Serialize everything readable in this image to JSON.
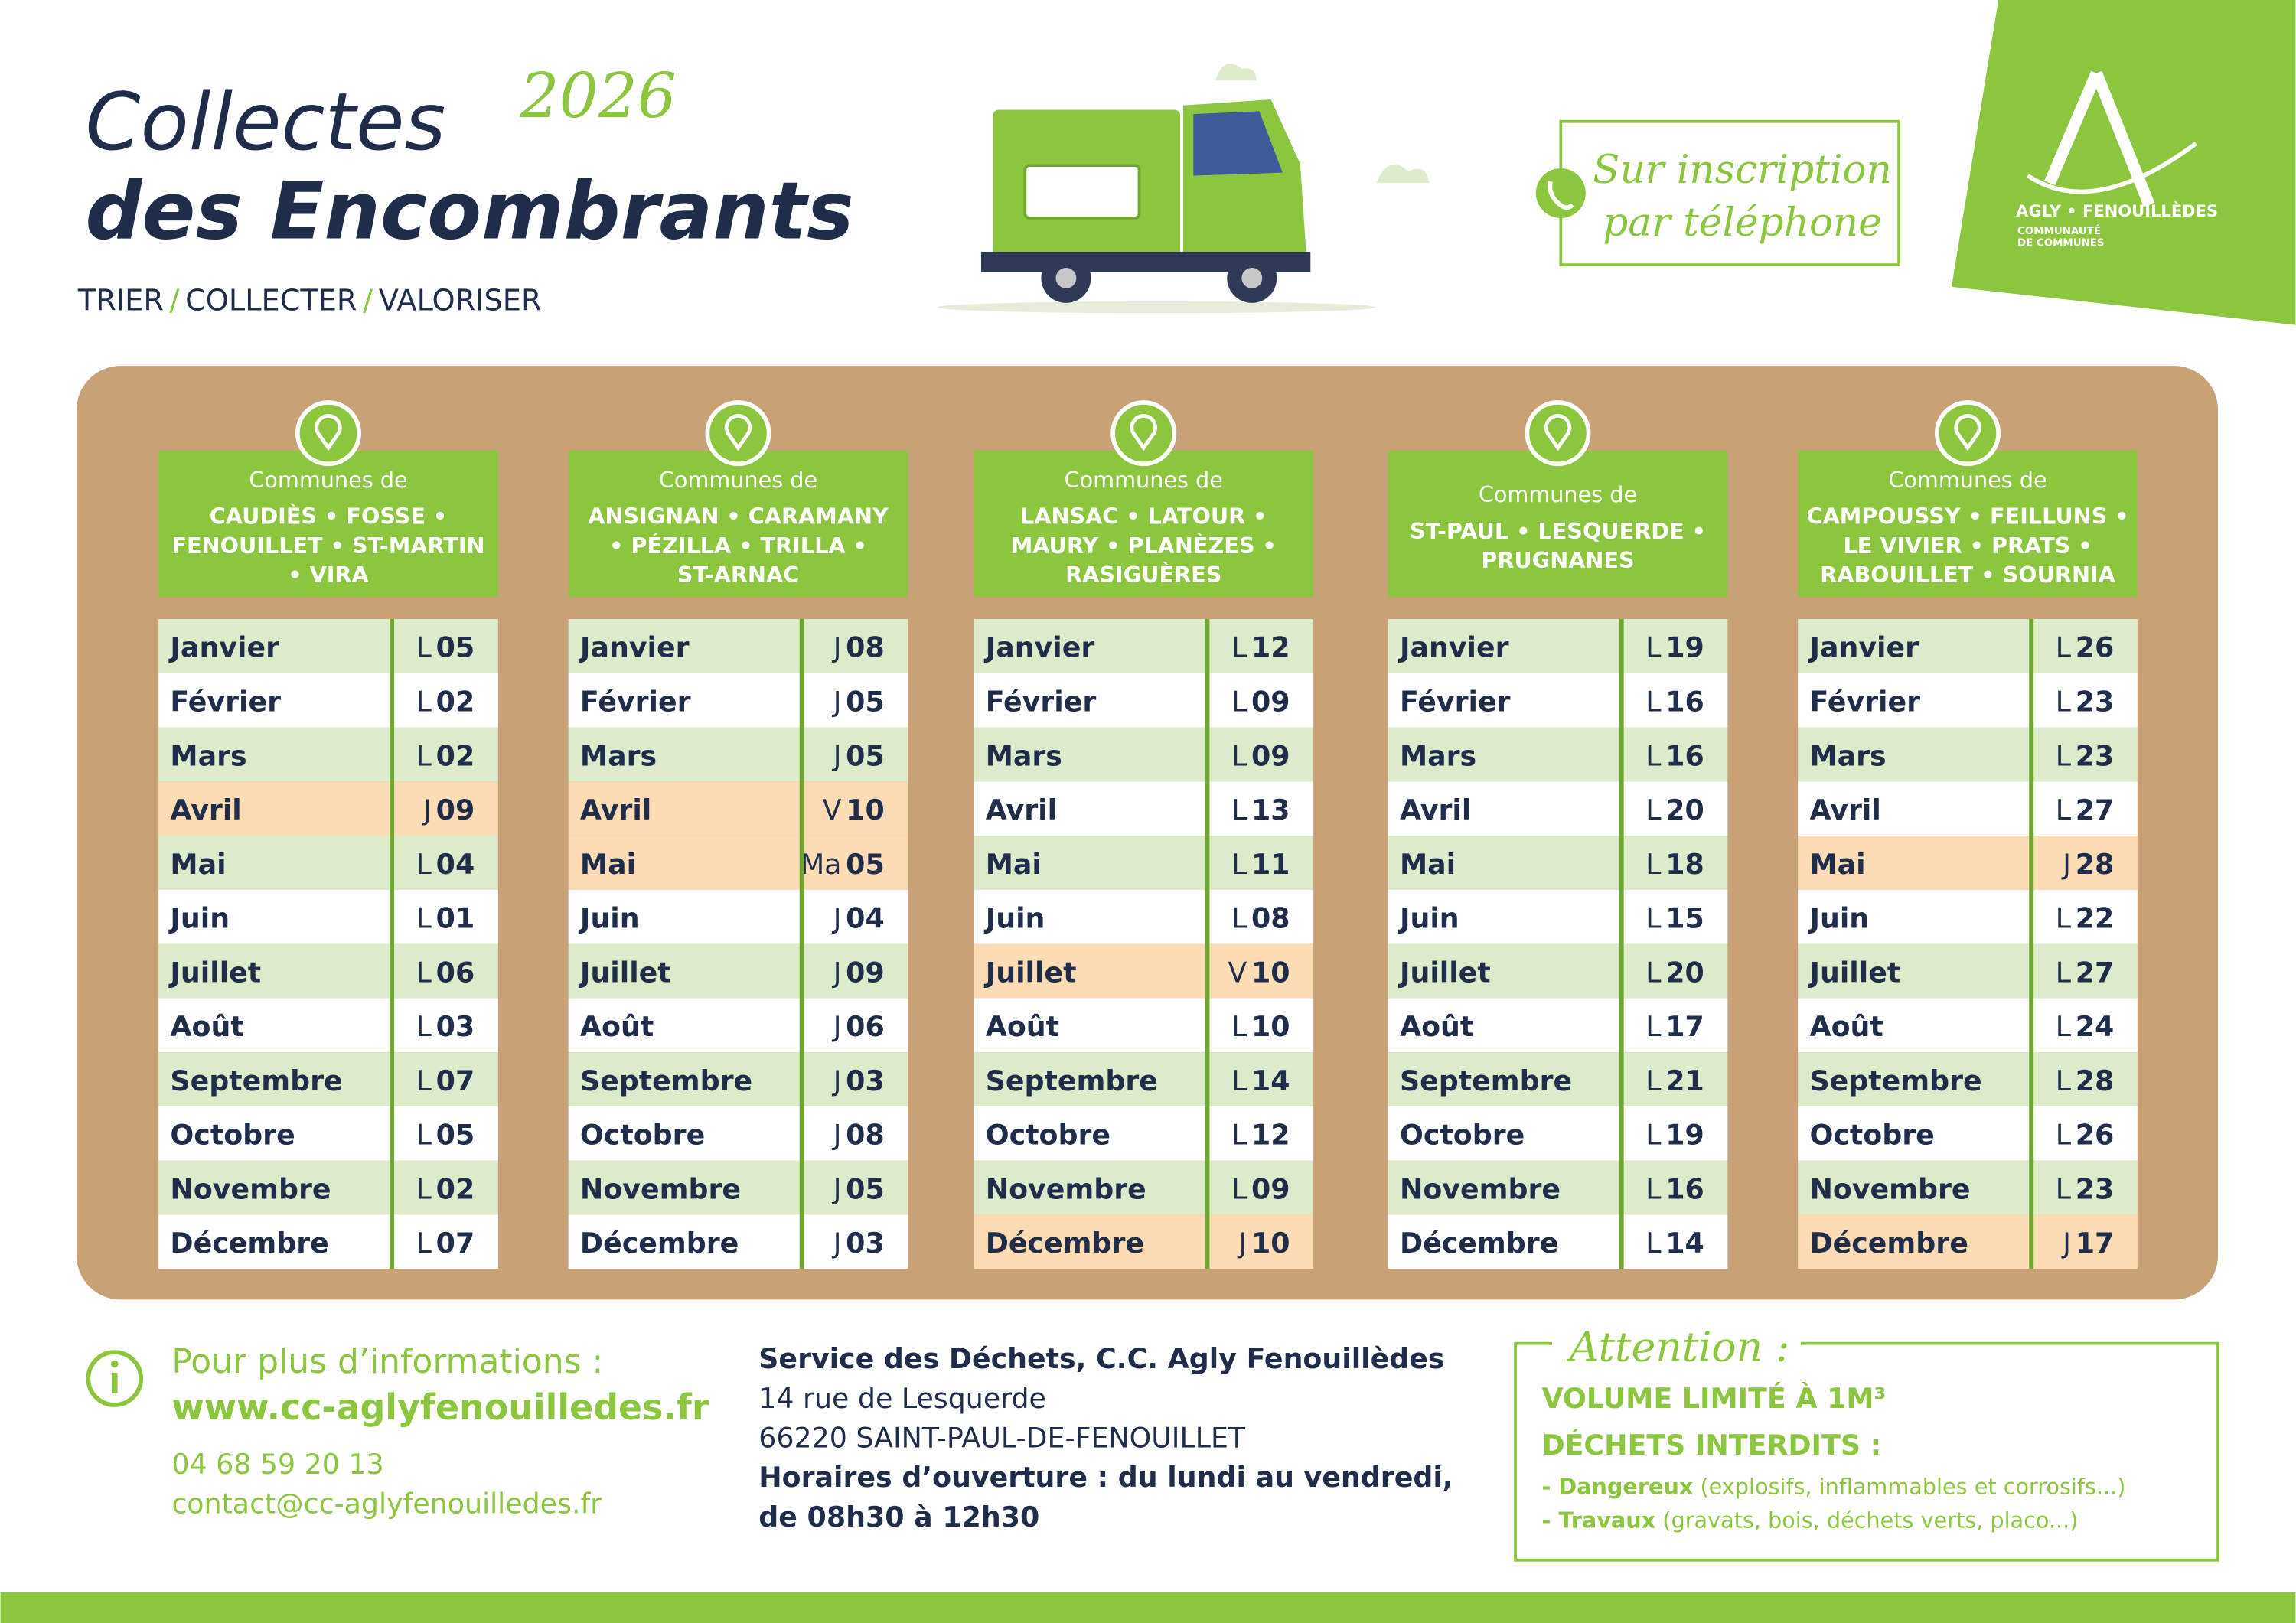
{
  "header": {
    "title_line1": "Collectes",
    "title_line2": "des Encombrants",
    "year": "2026",
    "tagline": [
      "TRIER",
      "COLLECTER",
      "VALORISER"
    ],
    "tagline_separator": "/"
  },
  "badge": {
    "lines": [
      "Sur inscription",
      "par téléphone"
    ]
  },
  "logo": {
    "name": "AGLY • FENOUILLÈDES",
    "lines": [
      "COMMUNAUTÉ",
      "DE COMMUNES"
    ]
  },
  "months": [
    "Janvier",
    "Février",
    "Mars",
    "Avril",
    "Mai",
    "Juin",
    "Juillet",
    "Août",
    "Septembre",
    "Octobre",
    "Novembre",
    "Décembre"
  ],
  "columns": [
    {
      "heading": "Communes de",
      "communes": [
        "CAUDIÈS • FOSSE •",
        "FENOUILLET • ST-MARTIN",
        "• VIRA"
      ],
      "dates": [
        {
          "day": "L",
          "date": "05"
        },
        {
          "day": "L",
          "date": "02"
        },
        {
          "day": "L",
          "date": "02"
        },
        {
          "day": "J",
          "date": "09",
          "highlight": true
        },
        {
          "day": "L",
          "date": "04"
        },
        {
          "day": "L",
          "date": "01"
        },
        {
          "day": "L",
          "date": "06"
        },
        {
          "day": "L",
          "date": "03"
        },
        {
          "day": "L",
          "date": "07"
        },
        {
          "day": "L",
          "date": "05"
        },
        {
          "day": "L",
          "date": "02"
        },
        {
          "day": "L",
          "date": "07"
        }
      ]
    },
    {
      "heading": "Communes de",
      "communes": [
        "ANSIGNAN • CARAMANY",
        "• PÉZILLA • TRILLA •",
        "ST-ARNAC"
      ],
      "dates": [
        {
          "day": "J",
          "date": "08"
        },
        {
          "day": "J",
          "date": "05"
        },
        {
          "day": "J",
          "date": "05"
        },
        {
          "day": "V",
          "date": "10",
          "highlight": true
        },
        {
          "day": "Ma",
          "date": "05",
          "highlight": true
        },
        {
          "day": "J",
          "date": "04"
        },
        {
          "day": "J",
          "date": "09"
        },
        {
          "day": "J",
          "date": "06"
        },
        {
          "day": "J",
          "date": "03"
        },
        {
          "day": "J",
          "date": "08"
        },
        {
          "day": "J",
          "date": "05"
        },
        {
          "day": "J",
          "date": "03"
        }
      ]
    },
    {
      "heading": "Communes de",
      "communes": [
        "LANSAC • LATOUR •",
        "MAURY • PLANÈZES •",
        "RASIGUÈRES"
      ],
      "dates": [
        {
          "day": "L",
          "date": "12"
        },
        {
          "day": "L",
          "date": "09"
        },
        {
          "day": "L",
          "date": "09"
        },
        {
          "day": "L",
          "date": "13"
        },
        {
          "day": "L",
          "date": "11"
        },
        {
          "day": "L",
          "date": "08"
        },
        {
          "day": "V",
          "date": "10",
          "highlight": true
        },
        {
          "day": "L",
          "date": "10"
        },
        {
          "day": "L",
          "date": "14"
        },
        {
          "day": "L",
          "date": "12"
        },
        {
          "day": "L",
          "date": "09"
        },
        {
          "day": "J",
          "date": "10",
          "highlight": true
        }
      ]
    },
    {
      "heading": "Communes de",
      "communes": [
        "ST-PAUL • LESQUERDE •",
        "PRUGNANES"
      ],
      "dates": [
        {
          "day": "L",
          "date": "19"
        },
        {
          "day": "L",
          "date": "16"
        },
        {
          "day": "L",
          "date": "16"
        },
        {
          "day": "L",
          "date": "20"
        },
        {
          "day": "L",
          "date": "18"
        },
        {
          "day": "L",
          "date": "15"
        },
        {
          "day": "L",
          "date": "20"
        },
        {
          "day": "L",
          "date": "17"
        },
        {
          "day": "L",
          "date": "21"
        },
        {
          "day": "L",
          "date": "19"
        },
        {
          "day": "L",
          "date": "16"
        },
        {
          "day": "L",
          "date": "14"
        }
      ]
    },
    {
      "heading": "Communes de",
      "communes": [
        "CAMPOUSSY • FEILLUNS •",
        "LE VIVIER • PRATS •",
        "RABOUILLET • SOURNIA"
      ],
      "dates": [
        {
          "day": "L",
          "date": "26"
        },
        {
          "day": "L",
          "date": "23"
        },
        {
          "day": "L",
          "date": "23"
        },
        {
          "day": "L",
          "date": "27"
        },
        {
          "day": "J",
          "date": "28",
          "highlight": true
        },
        {
          "day": "L",
          "date": "22"
        },
        {
          "day": "L",
          "date": "27"
        },
        {
          "day": "L",
          "date": "24"
        },
        {
          "day": "L",
          "date": "28"
        },
        {
          "day": "L",
          "date": "26"
        },
        {
          "day": "L",
          "date": "23"
        },
        {
          "day": "J",
          "date": "17",
          "highlight": true
        }
      ]
    }
  ],
  "info": {
    "title": "Pour plus d’informations :",
    "website": "www.cc-aglyfenouilledes.fr",
    "phone": "04 68 59 20 13",
    "email": "contact@cc-aglyfenouilledes.fr"
  },
  "address": {
    "lines": [
      {
        "text": "Service des Déchets, C.C. Agly Fenouillèdes",
        "bold": true
      },
      {
        "text": "14 rue de Lesquerde"
      },
      {
        "text": "66220 SAINT-PAUL-DE-FENOUILLET"
      },
      {
        "text": "Horaires d’ouverture : du lundi au vendredi,",
        "bold": true
      },
      {
        "text": "de 08h30 à 12h30",
        "bold": true
      }
    ]
  },
  "attention": {
    "title": "Attention :",
    "lines": [
      "VOLUME LIMITÉ À 1M³",
      "DÉCHETS INTERDITS :"
    ],
    "items": [
      {
        "label": "- Dangereux",
        "detail": " (explosifs, inflammables et corrosifs...)"
      },
      {
        "label": "- Travaux",
        "detail": " (gravats, bois, déchets verts, placo...)"
      }
    ]
  }
}
